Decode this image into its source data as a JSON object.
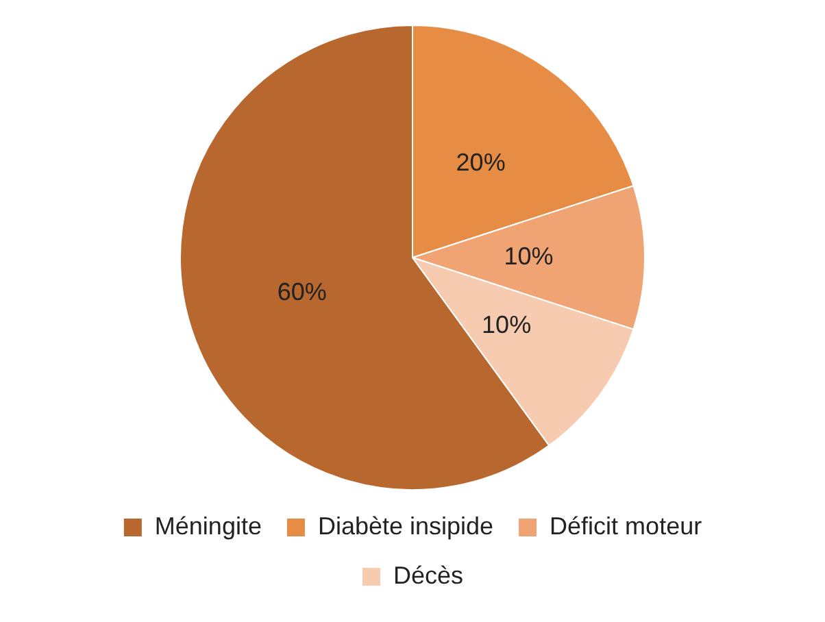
{
  "chart_data": {
    "type": "pie",
    "categories": [
      "Méningite",
      "Diabète insipide",
      "Déficit moteur",
      "Décès"
    ],
    "values": [
      60,
      20,
      10,
      10
    ],
    "colors": [
      "#b8672e",
      "#e68c45",
      "#f0a474",
      "#f6cbb0"
    ],
    "value_labels": [
      "60%",
      "20%",
      "10%",
      "10%"
    ],
    "legend": "bottom"
  }
}
